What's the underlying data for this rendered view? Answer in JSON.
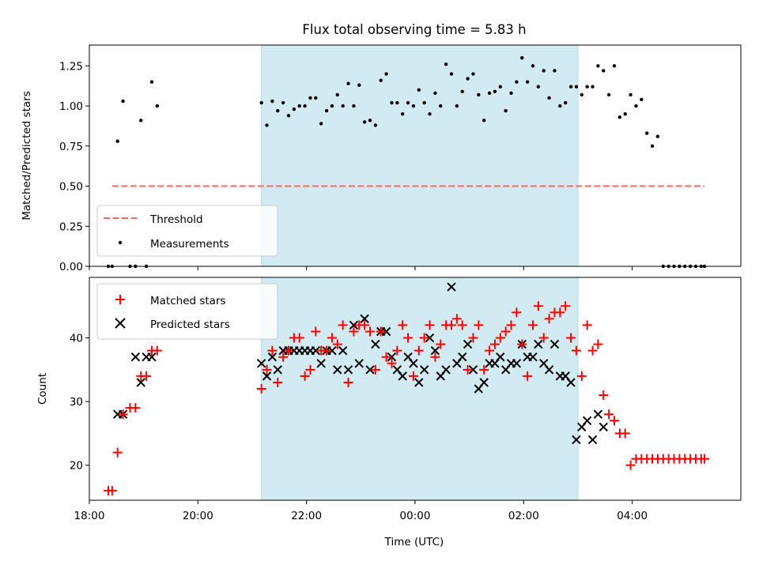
{
  "colors": {
    "observing_span": "#add8e6",
    "threshold": "#ff6666",
    "measurements": "#000000",
    "matched": "#ff0000",
    "predicted": "#000000",
    "axes": "#000000"
  },
  "chart_data": [
    {
      "type": "scatter",
      "title": "Flux total observing time = 5.83 h",
      "xlabel": "",
      "ylabel": "Matched/Predicted stars",
      "xlim": [
        18.0,
        6.0
      ],
      "ylim": [
        0.0,
        1.38
      ],
      "yticks": [
        0.0,
        0.25,
        0.5,
        0.75,
        1.0,
        1.25
      ],
      "ytick_labels": [
        "0.00",
        "0.25",
        "0.50",
        "0.75",
        "1.00",
        "1.25"
      ],
      "observing_span": [
        21.17,
        3.0
      ],
      "threshold": {
        "label": "Threshold",
        "y": 0.5,
        "x_range": [
          18.42,
          5.33
        ]
      },
      "legend": {
        "position": "lower-left",
        "entries": [
          "Threshold",
          "Measurements"
        ]
      },
      "series": [
        {
          "name": "Measurements",
          "x": [
            18.35,
            18.42,
            18.52,
            18.62,
            18.75,
            18.85,
            18.95,
            19.05,
            19.15,
            19.25,
            21.17,
            21.27,
            21.37,
            21.47,
            21.57,
            21.67,
            21.77,
            21.87,
            21.97,
            22.07,
            22.17,
            22.27,
            22.37,
            22.47,
            22.57,
            22.67,
            22.77,
            22.87,
            22.97,
            23.07,
            23.17,
            23.27,
            23.37,
            23.47,
            23.57,
            23.67,
            23.77,
            23.87,
            23.97,
            0.07,
            0.17,
            0.27,
            0.37,
            0.47,
            0.57,
            0.67,
            0.77,
            0.87,
            0.97,
            1.07,
            1.17,
            1.27,
            1.37,
            1.47,
            1.57,
            1.67,
            1.77,
            1.87,
            1.97,
            2.07,
            2.17,
            2.27,
            2.37,
            2.47,
            2.57,
            2.67,
            2.77,
            2.87,
            2.97,
            3.07,
            3.17,
            3.27,
            3.37,
            3.47,
            3.57,
            3.67,
            3.77,
            3.87,
            3.97,
            4.07,
            4.17,
            4.27,
            4.37,
            4.47,
            4.57,
            4.67,
            4.77,
            4.87,
            4.97,
            5.07,
            5.17,
            5.27,
            5.33
          ],
          "y": [
            0.0,
            0.0,
            0.78,
            1.03,
            0.0,
            0.0,
            0.91,
            0.0,
            1.15,
            1.0,
            1.02,
            0.88,
            1.03,
            0.97,
            1.02,
            0.94,
            0.98,
            1.0,
            1.0,
            1.05,
            1.05,
            0.89,
            0.97,
            1.0,
            1.07,
            1.0,
            1.14,
            1.0,
            1.13,
            0.9,
            0.91,
            0.88,
            1.16,
            1.2,
            1.02,
            1.02,
            0.95,
            1.02,
            1.0,
            1.1,
            1.02,
            0.95,
            1.08,
            1.0,
            1.26,
            1.2,
            1.0,
            1.09,
            1.17,
            1.2,
            1.07,
            0.91,
            1.08,
            1.09,
            1.12,
            0.97,
            1.08,
            1.15,
            1.3,
            1.15,
            1.25,
            1.12,
            1.22,
            1.05,
            1.22,
            1.0,
            1.02,
            1.12,
            1.12,
            1.07,
            1.12,
            1.12,
            1.25,
            1.22,
            1.07,
            1.25,
            0.93,
            0.95,
            1.07,
            1.0,
            1.04,
            0.83,
            0.75,
            0.81,
            0.0,
            0.0,
            0.0,
            0.0,
            0.0,
            0.0,
            0.0,
            0.0,
            0.0
          ]
        }
      ]
    },
    {
      "type": "scatter",
      "title": "",
      "xlabel": "Time (UTC)",
      "ylabel": "Count",
      "xlim": [
        18.0,
        6.0
      ],
      "ylim": [
        14.5,
        49.5
      ],
      "yticks": [
        20,
        30,
        40
      ],
      "ytick_labels": [
        "20",
        "30",
        "40"
      ],
      "xticks": [
        18,
        20,
        22,
        0,
        2,
        4
      ],
      "xtick_labels": [
        "18:00",
        "20:00",
        "22:00",
        "00:00",
        "02:00",
        "04:00"
      ],
      "observing_span": [
        21.17,
        3.0
      ],
      "legend": {
        "position": "upper-left",
        "entries": [
          "Matched stars",
          "Predicted stars"
        ]
      },
      "series": [
        {
          "name": "Matched stars",
          "marker": "+",
          "x": [
            18.35,
            18.42,
            18.52,
            18.62,
            18.75,
            18.85,
            18.95,
            19.05,
            19.15,
            19.25,
            21.17,
            21.27,
            21.37,
            21.47,
            21.57,
            21.67,
            21.77,
            21.87,
            21.97,
            22.07,
            22.17,
            22.27,
            22.37,
            22.47,
            22.57,
            22.67,
            22.77,
            22.87,
            22.97,
            23.07,
            23.17,
            23.27,
            23.37,
            23.47,
            23.57,
            23.67,
            23.77,
            23.87,
            23.97,
            0.07,
            0.17,
            0.27,
            0.37,
            0.47,
            0.57,
            0.67,
            0.77,
            0.87,
            0.97,
            1.07,
            1.17,
            1.27,
            1.37,
            1.47,
            1.57,
            1.67,
            1.77,
            1.87,
            1.97,
            2.07,
            2.17,
            2.27,
            2.37,
            2.47,
            2.57,
            2.67,
            2.77,
            2.87,
            2.97,
            3.07,
            3.17,
            3.27,
            3.37,
            3.47,
            3.57,
            3.67,
            3.77,
            3.87,
            3.97,
            4.07,
            4.17,
            4.27,
            4.37,
            4.47,
            4.57,
            4.67,
            4.77,
            4.87,
            4.97,
            5.07,
            5.17,
            5.27,
            5.33
          ],
          "y": [
            16,
            16,
            22,
            28,
            29,
            29,
            34,
            34,
            38,
            38,
            32,
            35,
            38,
            33,
            37,
            38,
            40,
            40,
            34,
            35,
            41,
            38,
            38,
            40,
            39,
            42,
            33,
            41,
            42,
            42,
            41,
            35,
            41,
            37,
            36,
            38,
            42,
            40,
            34,
            38,
            40,
            42,
            37,
            39,
            42,
            42,
            43,
            42,
            35,
            40,
            42,
            35,
            38,
            39,
            40,
            41,
            42,
            44,
            39,
            34,
            42,
            45,
            40,
            43,
            44,
            44,
            45,
            40,
            38,
            34,
            42,
            38,
            39,
            31,
            28,
            27,
            25,
            25,
            20,
            21,
            21,
            21,
            21,
            21,
            21,
            21,
            21,
            21,
            21,
            21,
            21,
            21,
            21
          ]
        },
        {
          "name": "Predicted stars",
          "marker": "x",
          "x": [
            18.52,
            18.62,
            18.85,
            18.95,
            19.05,
            19.15,
            21.17,
            21.27,
            21.37,
            21.47,
            21.57,
            21.67,
            21.77,
            21.87,
            21.97,
            22.07,
            22.17,
            22.27,
            22.37,
            22.47,
            22.57,
            22.67,
            22.77,
            22.87,
            22.97,
            23.07,
            23.17,
            23.27,
            23.37,
            23.47,
            23.57,
            23.67,
            23.77,
            23.87,
            23.97,
            0.07,
            0.17,
            0.27,
            0.37,
            0.47,
            0.57,
            0.67,
            0.77,
            0.87,
            0.97,
            1.07,
            1.17,
            1.27,
            1.37,
            1.47,
            1.57,
            1.67,
            1.77,
            1.87,
            1.97,
            2.07,
            2.17,
            2.27,
            2.37,
            2.47,
            2.57,
            2.67,
            2.77,
            2.87,
            2.97,
            3.07,
            3.17,
            3.27,
            3.37,
            3.47
          ],
          "y": [
            28,
            28,
            37,
            33,
            37,
            37,
            36,
            34,
            37,
            35,
            38,
            38,
            38,
            38,
            38,
            38,
            38,
            36,
            38,
            38,
            35,
            38,
            35,
            42,
            36,
            43,
            35,
            39,
            41,
            41,
            37,
            35,
            34,
            37,
            36,
            33,
            35,
            40,
            38,
            34,
            35,
            48,
            36,
            37,
            39,
            35,
            32,
            33,
            36,
            36,
            37,
            35,
            36,
            36,
            39,
            37,
            37,
            39,
            36,
            35,
            39,
            34,
            34,
            33,
            24,
            26,
            27,
            24,
            28,
            26
          ]
        }
      ]
    }
  ]
}
